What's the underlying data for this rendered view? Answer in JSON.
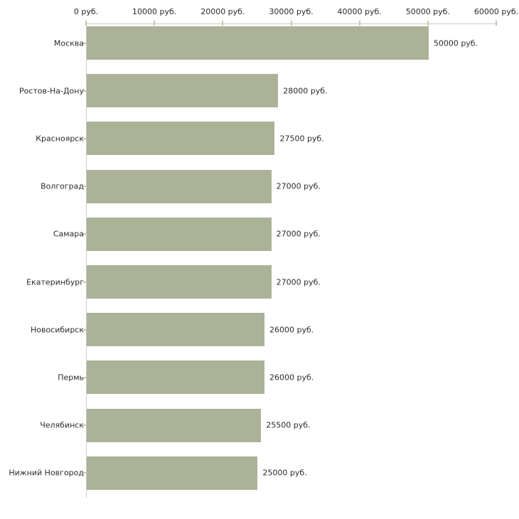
{
  "chart_data": {
    "type": "bar",
    "orientation": "horizontal",
    "title": "",
    "xlabel": "",
    "ylabel": "",
    "categories": [
      "Москва",
      "Ростов-На-Дону",
      "Красноярск",
      "Волгоград",
      "Самара",
      "Екатеринбург",
      "Новосибирск",
      "Пермь",
      "Челябинск",
      "Нижний Новгород"
    ],
    "values": [
      50000,
      28000,
      27500,
      27000,
      27000,
      27000,
      26000,
      26000,
      25500,
      25000
    ],
    "value_labels": [
      "50000 руб.",
      "28000 руб.",
      "27500 руб.",
      "27000 руб.",
      "27000 руб.",
      "27000 руб.",
      "26000 руб.",
      "26000 руб.",
      "25500 руб.",
      "25000 руб."
    ],
    "x_axis": {
      "position": "top",
      "min": 0,
      "max": 60000,
      "ticks": [
        0,
        10000,
        20000,
        30000,
        40000,
        50000,
        60000
      ],
      "tick_labels": [
        "0 руб.",
        "10000 руб.",
        "20000 руб.",
        "30000 руб.",
        "40000 руб.",
        "50000 руб.",
        "60000 руб."
      ]
    },
    "grid": false,
    "legend": false,
    "colors": {
      "bar": "#abb297",
      "axis_line": "#c9c9c9",
      "tick_mark": "#c5c6ae",
      "text": "#2b2b2b",
      "background": "#ffffff"
    }
  }
}
